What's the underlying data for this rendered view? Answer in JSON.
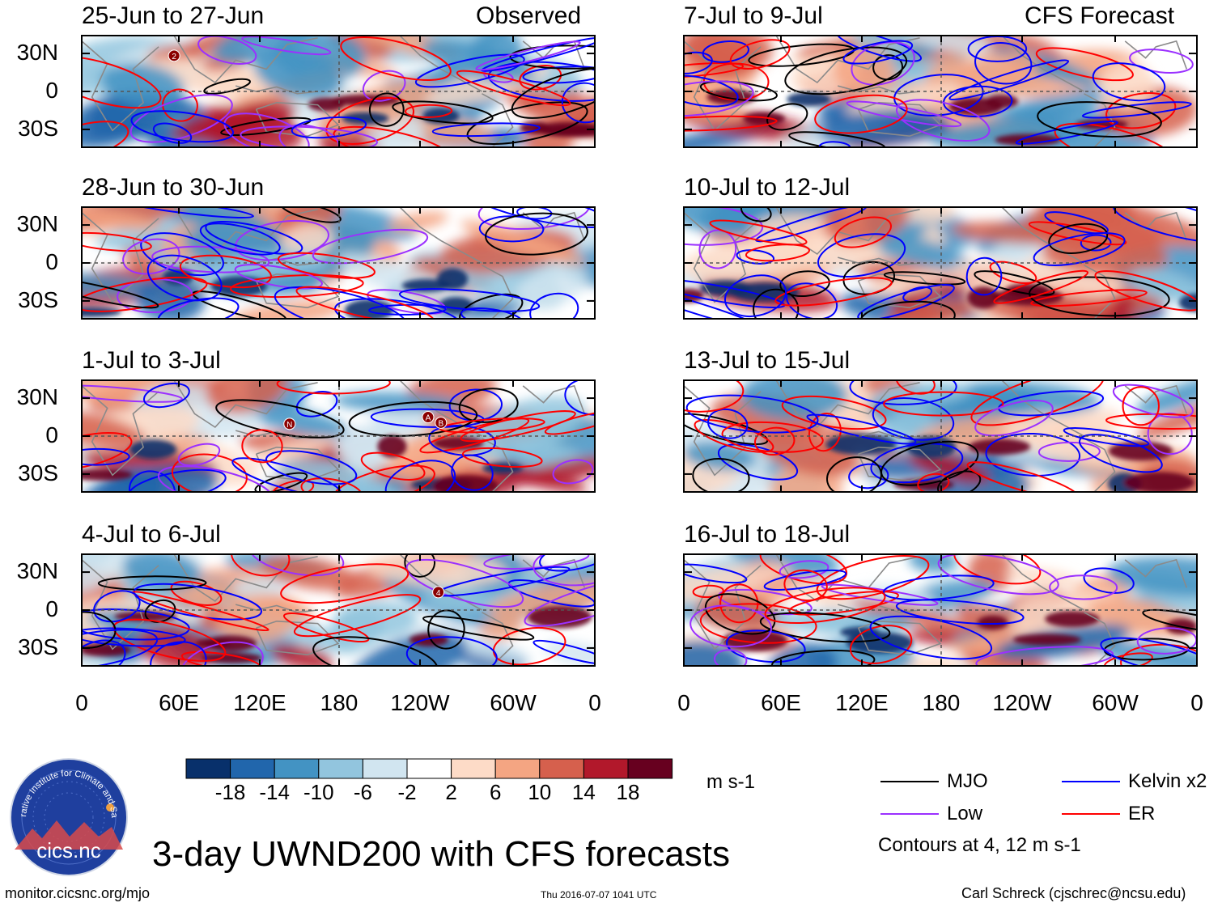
{
  "header": {
    "left_tag": "Observed",
    "right_tag": "CFS Forecast"
  },
  "chart_data": {
    "type": "heatmap",
    "title": "3-day UWND200 with CFS forecasts",
    "variable": "UWND200",
    "units": "m s-1",
    "columns": [
      "Observed",
      "CFS Forecast"
    ],
    "panels": [
      {
        "label": "25-Jun to 27-Jun",
        "column": "Observed"
      },
      {
        "label": "28-Jun to 30-Jun",
        "column": "Observed"
      },
      {
        "label": "1-Jul to 3-Jul",
        "column": "Observed"
      },
      {
        "label": "4-Jul to 6-Jul",
        "column": "Observed"
      },
      {
        "label": "7-Jul to 9-Jul",
        "column": "CFS Forecast"
      },
      {
        "label": "10-Jul to 12-Jul",
        "column": "CFS Forecast"
      },
      {
        "label": "13-Jul to 15-Jul",
        "column": "CFS Forecast"
      },
      {
        "label": "16-Jul to 18-Jul",
        "column": "CFS Forecast"
      }
    ],
    "lat_ticks": [
      "30N",
      "0",
      "30S"
    ],
    "lon_ticks": [
      "0",
      "60E",
      "120E",
      "180",
      "120W",
      "60W",
      "0"
    ],
    "lat_range": [
      -40,
      40
    ],
    "lon_range": [
      0,
      360
    ],
    "colorbar": {
      "levels": [
        "-18",
        "-14",
        "-10",
        "-6",
        "-2",
        "2",
        "6",
        "10",
        "14",
        "18"
      ],
      "colors": [
        "#08306b",
        "#2166ac",
        "#4393c3",
        "#92c5de",
        "#d1e5f0",
        "#ffffff",
        "#fddbc7",
        "#f4a582",
        "#d6604d",
        "#b2182b",
        "#67001f"
      ],
      "units_label": "m s-1"
    },
    "legend": [
      {
        "label": "MJO",
        "color": "#000000"
      },
      {
        "label": "Low",
        "color": "#9b30ff"
      },
      {
        "label": "Kelvin x2",
        "color": "#0000ff"
      },
      {
        "label": "ER",
        "color": "#ff0000"
      }
    ],
    "contour_note": "Contours at 4, 12 m s-1",
    "storm_markers": [
      {
        "panel": 0,
        "label": "2"
      },
      {
        "panel": 2,
        "label": "N"
      },
      {
        "panel": 2,
        "label": "A"
      },
      {
        "panel": 2,
        "label": "B"
      },
      {
        "panel": 3,
        "label": "4"
      }
    ]
  },
  "logo": {
    "arc_text": "Cooperative Institute for Climate and Satellites",
    "name": "cics.nc"
  },
  "footer": {
    "url": "monitor.cicsnc.org/mjo",
    "timestamp": "Thu 2016-07-07 1041 UTC",
    "credit": "Carl Schreck (cjschrec@ncsu.edu)"
  }
}
